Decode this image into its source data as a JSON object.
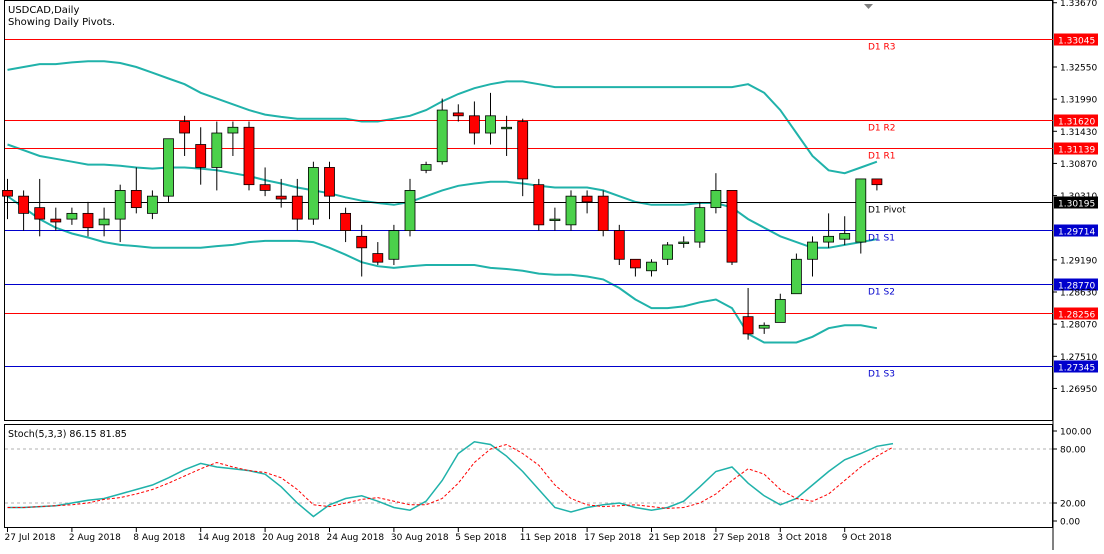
{
  "header": {
    "symbol_line": "USDCAD,Daily",
    "pivot_note": "Showing Daily Pivots."
  },
  "colors": {
    "background": "#ffffff",
    "bull_candle": "#4bd14b",
    "bear_candle": "#ff0000",
    "wick": "#000000",
    "bollinger": "#20b2aa",
    "resistance_line": "#ff0000",
    "support_line": "#0000cc",
    "pivot_line": "#000000",
    "stoch_main": "#20b2aa",
    "stoch_signal": "#ff0000",
    "price_badge": "#000000"
  },
  "chart_data": [
    {
      "type": "candlestick",
      "title": "USDCAD,Daily",
      "subtitle": "Showing Daily Pivots.",
      "y_axis_ticks": [
        "1.33670",
        "1.32550",
        "1.31990",
        "1.31430",
        "1.30870",
        "1.30310",
        "1.29190",
        "1.28630",
        "1.28070",
        "1.27510",
        "1.26950"
      ],
      "ylim": [
        1.264,
        1.337
      ],
      "x_axis_ticks": [
        "27 Jul 2018",
        "2 Aug 2018",
        "8 Aug 2018",
        "14 Aug 2018",
        "20 Aug 2018",
        "24 Aug 2018",
        "30 Aug 2018",
        "5 Sep 2018",
        "11 Sep 2018",
        "17 Sep 2018",
        "21 Sep 2018",
        "27 Sep 2018",
        "3 Oct 2018",
        "9 Oct 2018"
      ],
      "x_tick_candle_index": [
        0,
        4,
        8,
        12,
        16,
        20,
        24,
        28,
        32,
        36,
        40,
        44,
        48,
        52
      ],
      "candles": [
        {
          "o": 1.304,
          "h": 1.306,
          "l": 1.299,
          "c": 1.303
        },
        {
          "o": 1.303,
          "h": 1.304,
          "l": 1.297,
          "c": 1.3
        },
        {
          "o": 1.301,
          "h": 1.306,
          "l": 1.296,
          "c": 1.299
        },
        {
          "o": 1.299,
          "h": 1.301,
          "l": 1.297,
          "c": 1.2985
        },
        {
          "o": 1.299,
          "h": 1.301,
          "l": 1.298,
          "c": 1.3
        },
        {
          "o": 1.3,
          "h": 1.302,
          "l": 1.296,
          "c": 1.2975
        },
        {
          "o": 1.298,
          "h": 1.301,
          "l": 1.296,
          "c": 1.299
        },
        {
          "o": 1.299,
          "h": 1.305,
          "l": 1.295,
          "c": 1.304
        },
        {
          "o": 1.304,
          "h": 1.308,
          "l": 1.3,
          "c": 1.301
        },
        {
          "o": 1.3,
          "h": 1.304,
          "l": 1.299,
          "c": 1.303
        },
        {
          "o": 1.303,
          "h": 1.313,
          "l": 1.302,
          "c": 1.313
        },
        {
          "o": 1.316,
          "h": 1.317,
          "l": 1.31,
          "c": 1.314
        },
        {
          "o": 1.312,
          "h": 1.315,
          "l": 1.305,
          "c": 1.308
        },
        {
          "o": 1.308,
          "h": 1.316,
          "l": 1.304,
          "c": 1.314
        },
        {
          "o": 1.314,
          "h": 1.316,
          "l": 1.31,
          "c": 1.315
        },
        {
          "o": 1.315,
          "h": 1.316,
          "l": 1.304,
          "c": 1.305
        },
        {
          "o": 1.305,
          "h": 1.308,
          "l": 1.303,
          "c": 1.304
        },
        {
          "o": 1.303,
          "h": 1.306,
          "l": 1.301,
          "c": 1.3025
        },
        {
          "o": 1.303,
          "h": 1.306,
          "l": 1.297,
          "c": 1.299
        },
        {
          "o": 1.299,
          "h": 1.309,
          "l": 1.298,
          "c": 1.308
        },
        {
          "o": 1.308,
          "h": 1.309,
          "l": 1.299,
          "c": 1.303
        },
        {
          "o": 1.3,
          "h": 1.301,
          "l": 1.295,
          "c": 1.297
        },
        {
          "o": 1.296,
          "h": 1.298,
          "l": 1.289,
          "c": 1.294
        },
        {
          "o": 1.293,
          "h": 1.295,
          "l": 1.291,
          "c": 1.2915
        },
        {
          "o": 1.292,
          "h": 1.298,
          "l": 1.291,
          "c": 1.297
        },
        {
          "o": 1.297,
          "h": 1.306,
          "l": 1.296,
          "c": 1.304
        },
        {
          "o": 1.3075,
          "h": 1.309,
          "l": 1.307,
          "c": 1.3085
        },
        {
          "o": 1.309,
          "h": 1.32,
          "l": 1.3085,
          "c": 1.318
        },
        {
          "o": 1.3175,
          "h": 1.319,
          "l": 1.316,
          "c": 1.317
        },
        {
          "o": 1.317,
          "h": 1.3195,
          "l": 1.312,
          "c": 1.314
        },
        {
          "o": 1.314,
          "h": 1.321,
          "l": 1.312,
          "c": 1.317
        },
        {
          "o": 1.315,
          "h": 1.317,
          "l": 1.31,
          "c": 1.315
        },
        {
          "o": 1.316,
          "h": 1.3165,
          "l": 1.303,
          "c": 1.306
        },
        {
          "o": 1.305,
          "h": 1.306,
          "l": 1.297,
          "c": 1.298
        },
        {
          "o": 1.299,
          "h": 1.301,
          "l": 1.297,
          "c": 1.299
        },
        {
          "o": 1.298,
          "h": 1.304,
          "l": 1.297,
          "c": 1.303
        },
        {
          "o": 1.303,
          "h": 1.304,
          "l": 1.3,
          "c": 1.302
        },
        {
          "o": 1.303,
          "h": 1.304,
          "l": 1.296,
          "c": 1.297
        },
        {
          "o": 1.297,
          "h": 1.298,
          "l": 1.291,
          "c": 1.292
        },
        {
          "o": 1.292,
          "h": 1.292,
          "l": 1.289,
          "c": 1.2905
        },
        {
          "o": 1.29,
          "h": 1.292,
          "l": 1.289,
          "c": 1.2915
        },
        {
          "o": 1.292,
          "h": 1.295,
          "l": 1.291,
          "c": 1.2945
        },
        {
          "o": 1.295,
          "h": 1.296,
          "l": 1.294,
          "c": 1.295
        },
        {
          "o": 1.295,
          "h": 1.302,
          "l": 1.294,
          "c": 1.301
        },
        {
          "o": 1.301,
          "h": 1.307,
          "l": 1.3,
          "c": 1.304
        },
        {
          "o": 1.304,
          "h": 1.304,
          "l": 1.291,
          "c": 1.2915
        },
        {
          "o": 1.282,
          "h": 1.287,
          "l": 1.278,
          "c": 1.279
        },
        {
          "o": 1.28,
          "h": 1.281,
          "l": 1.279,
          "c": 1.2805
        },
        {
          "o": 1.281,
          "h": 1.286,
          "l": 1.281,
          "c": 1.285
        },
        {
          "o": 1.286,
          "h": 1.293,
          "l": 1.286,
          "c": 1.292
        },
        {
          "o": 1.292,
          "h": 1.296,
          "l": 1.289,
          "c": 1.295
        },
        {
          "o": 1.295,
          "h": 1.3,
          "l": 1.294,
          "c": 1.296
        },
        {
          "o": 1.2955,
          "h": 1.2995,
          "l": 1.2945,
          "c": 1.2965
        },
        {
          "o": 1.295,
          "h": 1.306,
          "l": 1.293,
          "c": 1.306
        },
        {
          "o": 1.306,
          "h": 1.306,
          "l": 1.304,
          "c": 1.305
        }
      ],
      "bollinger": {
        "upper": [
          1.325,
          1.3255,
          1.326,
          1.326,
          1.3263,
          1.3265,
          1.3265,
          1.3262,
          1.3255,
          1.3245,
          1.3235,
          1.3225,
          1.321,
          1.32,
          1.319,
          1.318,
          1.3172,
          1.3168,
          1.3165,
          1.3165,
          1.3165,
          1.3165,
          1.316,
          1.316,
          1.3165,
          1.317,
          1.318,
          1.3195,
          1.3208,
          1.3218,
          1.3225,
          1.323,
          1.323,
          1.3225,
          1.322,
          1.322,
          1.322,
          1.322,
          1.322,
          1.322,
          1.322,
          1.322,
          1.322,
          1.322,
          1.322,
          1.322,
          1.3225,
          1.321,
          1.318,
          1.314,
          1.31,
          1.3075,
          1.307,
          1.308,
          1.309
        ],
        "middle": [
          1.312,
          1.311,
          1.31,
          1.3095,
          1.309,
          1.3085,
          1.3085,
          1.3083,
          1.308,
          1.3078,
          1.308,
          1.308,
          1.3078,
          1.3075,
          1.307,
          1.3065,
          1.3058,
          1.3052,
          1.3045,
          1.304,
          1.3035,
          1.3028,
          1.3022,
          1.3018,
          1.3015,
          1.302,
          1.303,
          1.304,
          1.3048,
          1.3052,
          1.3055,
          1.3055,
          1.3052,
          1.3048,
          1.3045,
          1.3045,
          1.3045,
          1.304,
          1.303,
          1.302,
          1.3015,
          1.3015,
          1.3015,
          1.3018,
          1.3018,
          1.301,
          1.299,
          1.2975,
          1.296,
          1.295,
          1.294,
          1.294,
          1.2945,
          1.295,
          1.2955
        ],
        "lower": [
          1.303,
          1.301,
          1.299,
          1.2975,
          1.2965,
          1.2958,
          1.295,
          1.2945,
          1.2943,
          1.294,
          1.294,
          1.294,
          1.294,
          1.2943,
          1.2945,
          1.295,
          1.2952,
          1.2952,
          1.2952,
          1.295,
          1.294,
          1.2928,
          1.2915,
          1.2908,
          1.2905,
          1.2908,
          1.291,
          1.291,
          1.291,
          1.291,
          1.2905,
          1.2903,
          1.29,
          1.2895,
          1.2893,
          1.2893,
          1.289,
          1.2885,
          1.287,
          1.285,
          1.2835,
          1.2835,
          1.2838,
          1.2845,
          1.285,
          1.2835,
          1.279,
          1.2775,
          1.2775,
          1.2775,
          1.2785,
          1.28,
          1.2805,
          1.2805,
          1.28
        ]
      },
      "pivot_levels": [
        {
          "label": "D1 R3",
          "value": 1.33045,
          "value_text": "1.33045",
          "role": "resistance"
        },
        {
          "label": "D1 R2",
          "value": 1.3162,
          "value_text": "1.31620",
          "role": "resistance"
        },
        {
          "label": "D1 R1",
          "value": 1.31139,
          "value_text": "1.31139",
          "role": "resistance"
        },
        {
          "label": "D1 Pivot",
          "value": 1.30195,
          "value_text": "1.30195",
          "role": "pivot"
        },
        {
          "label": "D1 S1",
          "value": 1.29714,
          "value_text": "1.29714",
          "role": "support"
        },
        {
          "label": "D1 S2",
          "value": 1.2877,
          "value_text": "1.28770",
          "role": "support"
        },
        {
          "label": "",
          "value": 1.28256,
          "value_text": "1.28256",
          "role": "resistance"
        },
        {
          "label": "D1 S3",
          "value": 1.27345,
          "value_text": "1.27345",
          "role": "support"
        }
      ]
    },
    {
      "type": "line",
      "title": "Stoch(5,3,3) 86.15 81.85",
      "ylim": [
        0,
        100
      ],
      "y_axis_ticks": [
        "100.00",
        "80.00",
        "20.00",
        "0.00"
      ],
      "levels": [
        80,
        20
      ],
      "series": [
        {
          "values": [
            15,
            15,
            16,
            17,
            20,
            23,
            25,
            30,
            35,
            40,
            48,
            57,
            64,
            60,
            58,
            56,
            52,
            38,
            20,
            5,
            18,
            25,
            28,
            22,
            15,
            12,
            22,
            45,
            75,
            88,
            85,
            72,
            55,
            35,
            15,
            10,
            15,
            18,
            20,
            15,
            12,
            15,
            22,
            38,
            55,
            60,
            42,
            28,
            18,
            25,
            40,
            55,
            68,
            75,
            83,
            86
          ]
        },
        {
          "values": [
            15,
            15,
            16,
            17,
            18,
            20,
            24,
            26,
            30,
            35,
            42,
            50,
            58,
            65,
            60,
            56,
            54,
            48,
            35,
            18,
            16,
            20,
            24,
            26,
            22,
            18,
            18,
            25,
            42,
            65,
            80,
            85,
            75,
            62,
            40,
            25,
            18,
            16,
            17,
            18,
            16,
            14,
            15,
            20,
            30,
            45,
            58,
            52,
            35,
            25,
            22,
            30,
            45,
            60,
            72,
            82
          ]
        }
      ]
    }
  ]
}
